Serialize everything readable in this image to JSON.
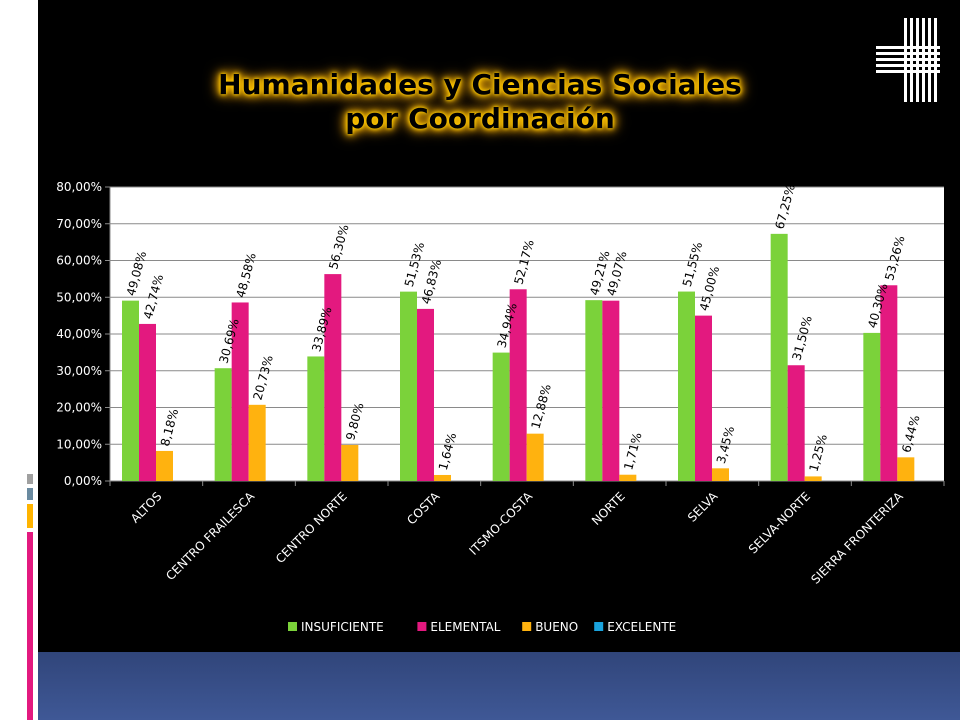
{
  "slide": {
    "title_line1": "Humanidades y Ciencias Sociales",
    "title_line2": "por Coordinación"
  },
  "colors": {
    "insuficiente": "#7bd23a",
    "elemental": "#e3197f",
    "bueno": "#ffb20f",
    "excelente": "#1aa3dd",
    "title_glow": "#ffcc00"
  },
  "chart_data": {
    "type": "bar",
    "categories": [
      "ALTOS",
      "CENTRO FRAILESCA",
      "CENTRO NORTE",
      "COSTA",
      "ITSMO-COSTA",
      "NORTE",
      "SELVA",
      "SELVA-NORTE",
      "SIERRA FRONTERIZA"
    ],
    "series": [
      {
        "name": "INSUFICIENTE",
        "color": "#7bd23a",
        "values": [
          49.08,
          30.69,
          33.89,
          51.53,
          34.94,
          49.21,
          51.55,
          67.25,
          40.3
        ],
        "labels": [
          "49,08%",
          "30,69%",
          "33,89%",
          "51,53%",
          "34,94%",
          "49,21%",
          "51,55%",
          "67,25%",
          "40,30%"
        ]
      },
      {
        "name": "ELEMENTAL",
        "color": "#e3197f",
        "values": [
          42.74,
          48.58,
          56.3,
          46.83,
          52.17,
          49.07,
          45.0,
          31.5,
          53.26
        ],
        "labels": [
          "42,74%",
          "48,58%",
          "56,30%",
          "46,83%",
          "52,17%",
          "49,07%",
          "45,00%",
          "31,50%",
          "53,26%"
        ]
      },
      {
        "name": "BUENO",
        "color": "#ffb20f",
        "values": [
          8.18,
          20.73,
          9.8,
          1.64,
          12.88,
          1.71,
          3.45,
          1.25,
          6.44
        ],
        "labels": [
          "8,18%",
          "20,73%",
          "9,80%",
          "1,64%",
          "12,88%",
          "1,71%",
          "3,45%",
          "1,25%",
          "6,44%"
        ]
      },
      {
        "name": "EXCELENTE",
        "color": "#1aa3dd",
        "values": [
          0,
          0,
          0,
          0,
          0,
          0,
          0,
          0,
          0
        ],
        "labels": []
      }
    ],
    "ylim": [
      0,
      80
    ],
    "yticks": [
      0,
      10,
      20,
      30,
      40,
      50,
      60,
      70,
      80
    ],
    "ytick_labels": [
      "0,00%",
      "10,00%",
      "20,00%",
      "30,00%",
      "40,00%",
      "50,00%",
      "60,00%",
      "70,00%",
      "80,00%"
    ],
    "legend": [
      "INSUFICIENTE",
      "ELEMENTAL",
      "BUENO",
      "EXCELENTE"
    ],
    "legend_position": "bottom",
    "grid": true
  }
}
